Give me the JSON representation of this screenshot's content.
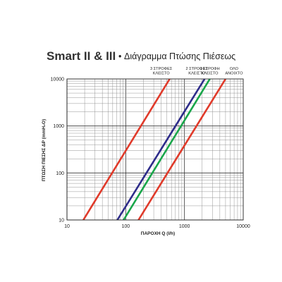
{
  "chart_data": {
    "type": "line",
    "title": "Smart II & III",
    "subtitle": "Διάγραμμα Πτώσης Πιέσεως",
    "xlabel": "ΠΑΡΟΧΗ Q (l/h)",
    "ylabel": "ΠΤΩΣΗ ΠΙΕΣΗΣ ΔP (mmH₂O)",
    "x_scale": "log",
    "y_scale": "log",
    "xlim": [
      10,
      10000
    ],
    "ylim": [
      10,
      10000
    ],
    "x_ticks": [
      "10",
      "100",
      "1000",
      "10000"
    ],
    "y_ticks": [
      "10",
      "100",
      "1000",
      "10000"
    ],
    "grid": true,
    "series": [
      {
        "name": "3 ΣΤΡΟΦΕΣ ΚΛΕΙΣΤΟ",
        "color": "#e03a2a",
        "x": [
          19,
          560
        ],
        "y": [
          10,
          10000
        ]
      },
      {
        "name": "2 ΣΤΡΟΦΕΣ ΚΛΕΙΣΤΟ",
        "color": "#2e2c8a",
        "x": [
          72,
          2200
        ],
        "y": [
          10,
          10000
        ]
      },
      {
        "name": "1 ΣΤΡΟΦΗ ΚΛΕΙΣΤΟ",
        "color": "#19a64a",
        "x": [
          92,
          2700
        ],
        "y": [
          10,
          10000
        ]
      },
      {
        "name": "ΟΛΟ ΑΝΟΙΧΤΟ",
        "color": "#e03a2a",
        "x": [
          165,
          5000
        ],
        "y": [
          10,
          10000
        ]
      }
    ]
  }
}
